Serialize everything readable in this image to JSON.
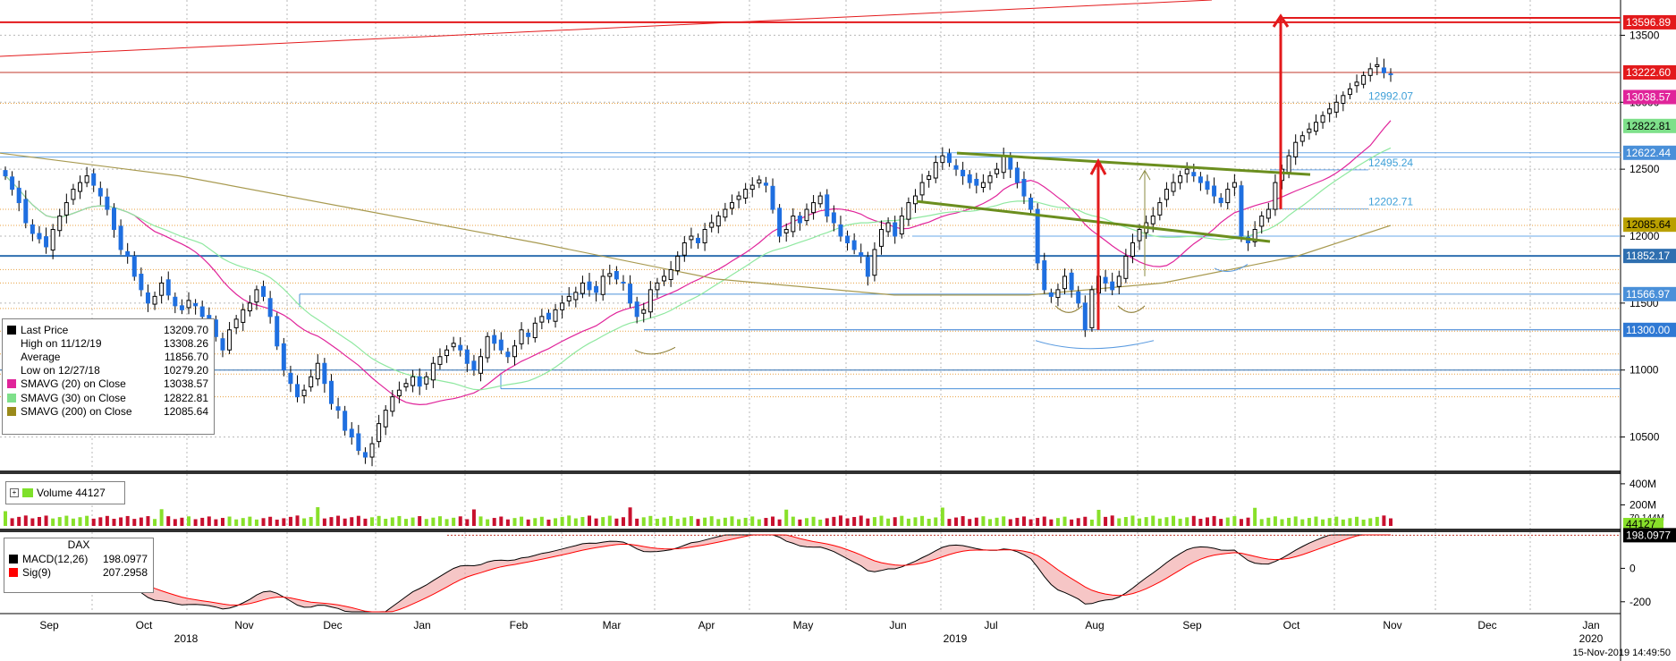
{
  "chart_data": {
    "type": "candlestick",
    "instrument": "DAX",
    "timestamp": "15-Nov-2019 14:49:50",
    "x_axis": {
      "months": [
        "Sep",
        "Oct",
        "Nov",
        "Dec",
        "Jan",
        "Feb",
        "Mar",
        "Apr",
        "May",
        "Jun",
        "Jul",
        "Aug",
        "Sep",
        "Oct",
        "Nov",
        "Dec",
        "Jan"
      ],
      "years": [
        "2018",
        "2019",
        "2020"
      ]
    },
    "price_axis": {
      "ticks": [
        10500,
        11000,
        11500,
        12000,
        12500,
        13000,
        13500
      ],
      "range": [
        10250,
        13750
      ]
    },
    "price_labels": [
      {
        "text": "13596.89",
        "value": 13596.89,
        "color": "#e31a1c"
      },
      {
        "text": "13222.60",
        "value": 13222.6,
        "color": "#e31a1c"
      },
      {
        "text": "13038.57",
        "value": 13038.57,
        "color": "#e0249a"
      },
      {
        "text": "12822.81",
        "value": 12822.81,
        "color": "#7ee08a"
      },
      {
        "text": "12622.44",
        "value": 12622.44,
        "color": "#4a90d9"
      },
      {
        "text": "12085.64",
        "value": 12085.64,
        "color": "#b9a000"
      },
      {
        "text": "11852.17",
        "value": 11852.17,
        "color": "#2f6fb0"
      },
      {
        "text": "11566.97",
        "value": 11566.97,
        "color": "#4a90d9"
      },
      {
        "text": "11300.00",
        "value": 11300,
        "color": "#2f79d4"
      }
    ],
    "chart_annotations": [
      {
        "text": "12992.07",
        "value": 12992.07
      },
      {
        "text": "12495.24",
        "value": 12495.24
      },
      {
        "text": "12202.71",
        "value": 12202.71
      }
    ],
    "legend": [
      {
        "label": "Last Price",
        "value": "13209.70",
        "color": "#000000"
      },
      {
        "label": "High on 11/12/19",
        "value": "13308.26",
        "color": "none"
      },
      {
        "label": "Average",
        "value": "11856.70",
        "color": "none"
      },
      {
        "label": "Low on 12/27/18",
        "value": "10279.20",
        "color": "none"
      },
      {
        "label": "SMAVG (20)  on Close",
        "value": "13038.57",
        "color": "#e0249a"
      },
      {
        "label": "SMAVG (30)  on Close",
        "value": "12822.81",
        "color": "#7ee08a"
      },
      {
        "label": "SMAVG (200)  on Close",
        "value": "12085.64",
        "color": "#9a8a1a"
      }
    ],
    "volume": {
      "label": "Volume",
      "last": "44127",
      "ticks": [
        "400M",
        "200M"
      ],
      "ticks_values": [
        400,
        200
      ],
      "range": [
        0,
        450
      ],
      "last_marker": "70.144M",
      "last_label": "44127"
    },
    "macd": {
      "title": "DAX",
      "ticks": [
        0,
        -200
      ],
      "range": [
        -260,
        200
      ],
      "last_label": "198.0977",
      "legend": [
        {
          "label": "MACD(12,26)",
          "value": "198.0977",
          "color": "#000000"
        },
        {
          "label": "Sig(9)",
          "value": "207.2958",
          "color": "#ff0000"
        }
      ]
    },
    "closes": [
      12450,
      12350,
      12250,
      12100,
      12020,
      11980,
      11920,
      12050,
      12150,
      12250,
      12350,
      12400,
      12450,
      12380,
      12300,
      12200,
      12050,
      11900,
      11850,
      11700,
      11600,
      11500,
      11550,
      11650,
      11560,
      11480,
      11450,
      11520,
      11480,
      11400,
      11350,
      11250,
      11150,
      11300,
      11380,
      11450,
      11500,
      11600,
      11550,
      11400,
      11180,
      11000,
      10900,
      10800,
      10850,
      10950,
      11050,
      10900,
      10750,
      10700,
      10550,
      10500,
      10400,
      10350,
      10450,
      10600,
      10700,
      10800,
      10850,
      10900,
      10950,
      10880,
      10950,
      11050,
      11100,
      11150,
      11200,
      11150,
      11050,
      11000,
      11100,
      11250,
      11200,
      11150,
      11100,
      11180,
      11300,
      11250,
      11350,
      11400,
      11380,
      11450,
      11500,
      11550,
      11580,
      11650,
      11600,
      11580,
      11700,
      11720,
      11680,
      11650,
      11500,
      11400,
      11450,
      11600,
      11650,
      11700,
      11750,
      11850,
      11950,
      12000,
      11950,
      12050,
      12100,
      12150,
      12200,
      12250,
      12300,
      12350,
      12380,
      12420,
      12380,
      12200,
      12000,
      12050,
      12150,
      12100,
      12200,
      12250,
      12300,
      12150,
      12100,
      12000,
      11950,
      11900,
      11850,
      11700,
      11900,
      12050,
      12100,
      12000,
      12150,
      12250,
      12300,
      12400,
      12450,
      12550,
      12600,
      12550,
      12500,
      12450,
      12400,
      12380,
      12400,
      12450,
      12500,
      12600,
      12500,
      12400,
      12300,
      12200,
      11800,
      11600,
      11550,
      11600,
      11700,
      11600,
      11500,
      11300,
      11600,
      11700,
      11650,
      11600,
      11700,
      11850,
      11950,
      12050,
      12100,
      12150,
      12250,
      12350,
      12400,
      12450,
      12500,
      12450,
      12400,
      12350,
      12300,
      12250,
      12350,
      12400,
      12000,
      11950,
      12050,
      12150,
      12200,
      12400,
      12500,
      12600,
      12700,
      12750,
      12800,
      12850,
      12900,
      12950,
      13000,
      13050,
      13100,
      13150,
      13200,
      13250,
      13280,
      13220,
      13210
    ]
  }
}
